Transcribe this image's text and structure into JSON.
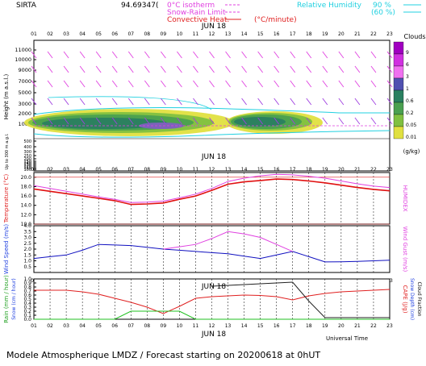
{
  "header": {
    "site": "SIRTA",
    "coords": "94.69347(",
    "legend": [
      {
        "label": "0°C isotherm",
        "color": "#e040e0"
      },
      {
        "label": "Snow-Rain Limit",
        "color": "#e040e0"
      },
      {
        "label": "Convective Heat.",
        "color": "#e02020"
      },
      {
        "label": "(°C/minute)",
        "color": "#e02020"
      }
    ],
    "humidity_label": "Relative Humidity",
    "humidity_levels": [
      "90 %",
      "(60 %)"
    ],
    "humidity_color": "#20d0e0"
  },
  "hours": [
    "01",
    "02",
    "03",
    "04",
    "05",
    "06",
    "07",
    "08",
    "09",
    "10",
    "11",
    "12",
    "13",
    "14",
    "15",
    "16",
    "17",
    "18",
    "19",
    "20",
    "21",
    "22",
    "23"
  ],
  "date_label": "JUN 18",
  "footer": {
    "universal_time": "Universal Time",
    "caption": "Modele Atmospherique LMDZ / Forecast starting on 20200618 at 0hUT"
  },
  "chart_data": [
    {
      "type": "heatmap",
      "title": "Clouds",
      "ylabel": "Height (m a.s.l.)",
      "ylabel_low": "Up to 300 m a.g.l.",
      "y_ticks": [
        "11000",
        "10000",
        "9000",
        "7000",
        "5000",
        "3000",
        "2000",
        "1000",
        "500",
        "400",
        "300",
        "250",
        "200",
        "150",
        "140",
        "130",
        "120",
        "110",
        "100"
      ],
      "colorbar": {
        "title": "Clouds",
        "unit": "(g/kg)",
        "levels": [
          "9",
          "6",
          "3",
          "1",
          "0.6",
          "0.2",
          "0.05",
          "0.01"
        ],
        "colors": [
          "#a000c0",
          "#d030e0",
          "#f070f0",
          "#5050b0",
          "#2a8060",
          "#4aa050",
          "#80c040",
          "#e0e040"
        ]
      },
      "date_label": "JUN 18"
    },
    {
      "type": "line",
      "ylabel": "Temperature (°C)",
      "ylabel_right": "HUMIDEX",
      "y_ticks": [
        "20.0",
        "18.0",
        "16.0",
        "14.0",
        "12.0",
        "10.0"
      ],
      "ylim": [
        10,
        21
      ],
      "series": [
        {
          "name": "Temperature",
          "color": "#e01010",
          "values": [
            17.5,
            17.0,
            16.5,
            16.0,
            15.5,
            15.0,
            14.2,
            14.3,
            14.5,
            15.3,
            16.0,
            17.2,
            18.5,
            19.0,
            19.3,
            19.6,
            19.5,
            19.2,
            18.8,
            18.3,
            17.8,
            17.4,
            17.1
          ]
        },
        {
          "name": "HUMIDEX",
          "color": "#e040e0",
          "values": [
            18.2,
            17.6,
            17.0,
            16.4,
            15.8,
            15.3,
            14.6,
            14.7,
            14.9,
            15.6,
            16.4,
            17.6,
            19.1,
            19.8,
            20.3,
            20.6,
            20.5,
            20.2,
            19.8,
            19.2,
            18.6,
            18.1,
            17.8
          ]
        }
      ]
    },
    {
      "type": "line",
      "ylabel": "Wind Speed (m/s)",
      "ylabel_right": "Wind Gust (m/s)",
      "y_ticks": [
        "4.0",
        "3.5",
        "3.0",
        "2.5",
        "2.0",
        "1.5",
        "1.0",
        "0.5"
      ],
      "ylim": [
        0,
        4
      ],
      "series": [
        {
          "name": "Wind Speed",
          "color": "#1010c0",
          "values": [
            1.2,
            1.35,
            1.5,
            1.9,
            2.4,
            2.35,
            2.3,
            2.15,
            2.0,
            1.9,
            1.8,
            1.7,
            1.6,
            1.4,
            1.2,
            1.5,
            1.8,
            1.35,
            0.9,
            0.92,
            0.95,
            1.0,
            1.05
          ]
        },
        {
          "name": "Wind Gust",
          "color": "#e040e0",
          "values": [
            null,
            null,
            null,
            null,
            null,
            null,
            null,
            null,
            2.0,
            2.2,
            2.4,
            2.9,
            3.5,
            3.3,
            3.0,
            2.4,
            1.8,
            null,
            null,
            null,
            null,
            null,
            null
          ]
        }
      ]
    },
    {
      "type": "line",
      "ylabel": "Rain (mm / hour)",
      "ylabel2": "Snow (cm / hour)",
      "ylabel_right": "CAPE (J/g)",
      "ylabel_right2": "Snow Depth (cm)",
      "ylabel_right3": "Cloud Fraction",
      "y_ticks": [
        "1.0",
        "0.9",
        "0.8",
        "0.7",
        "0.6",
        "0.5",
        "0.4",
        "0.3",
        "0.2",
        "0.1",
        "0.0"
      ],
      "ylim": [
        0,
        1
      ],
      "date_label": "JUN 18",
      "series": [
        {
          "name": "CAPE",
          "color": "#e02020",
          "values": [
            0.72,
            0.72,
            0.72,
            0.68,
            0.62,
            0.52,
            0.42,
            0.3,
            0.14,
            0.32,
            0.52,
            0.56,
            0.58,
            0.6,
            0.59,
            0.56,
            0.48,
            0.58,
            0.64,
            0.68,
            0.7,
            0.72,
            0.74
          ]
        },
        {
          "name": "Cloud Fraction",
          "color": "#202020",
          "values": [
            null,
            null,
            null,
            null,
            null,
            null,
            null,
            null,
            null,
            null,
            null,
            0.82,
            0.84,
            0.86,
            0.88,
            0.9,
            0.92,
            0.45,
            0.04,
            0.04,
            0.04,
            0.04,
            0.04
          ]
        },
        {
          "name": "Rain",
          "color": "#20c020",
          "values": [
            0,
            0,
            0,
            0,
            0,
            0,
            0.2,
            0.2,
            0.2,
            0.2,
            0,
            0,
            0,
            0,
            0,
            0,
            0,
            0,
            0,
            0,
            0,
            0,
            0
          ]
        }
      ]
    }
  ]
}
